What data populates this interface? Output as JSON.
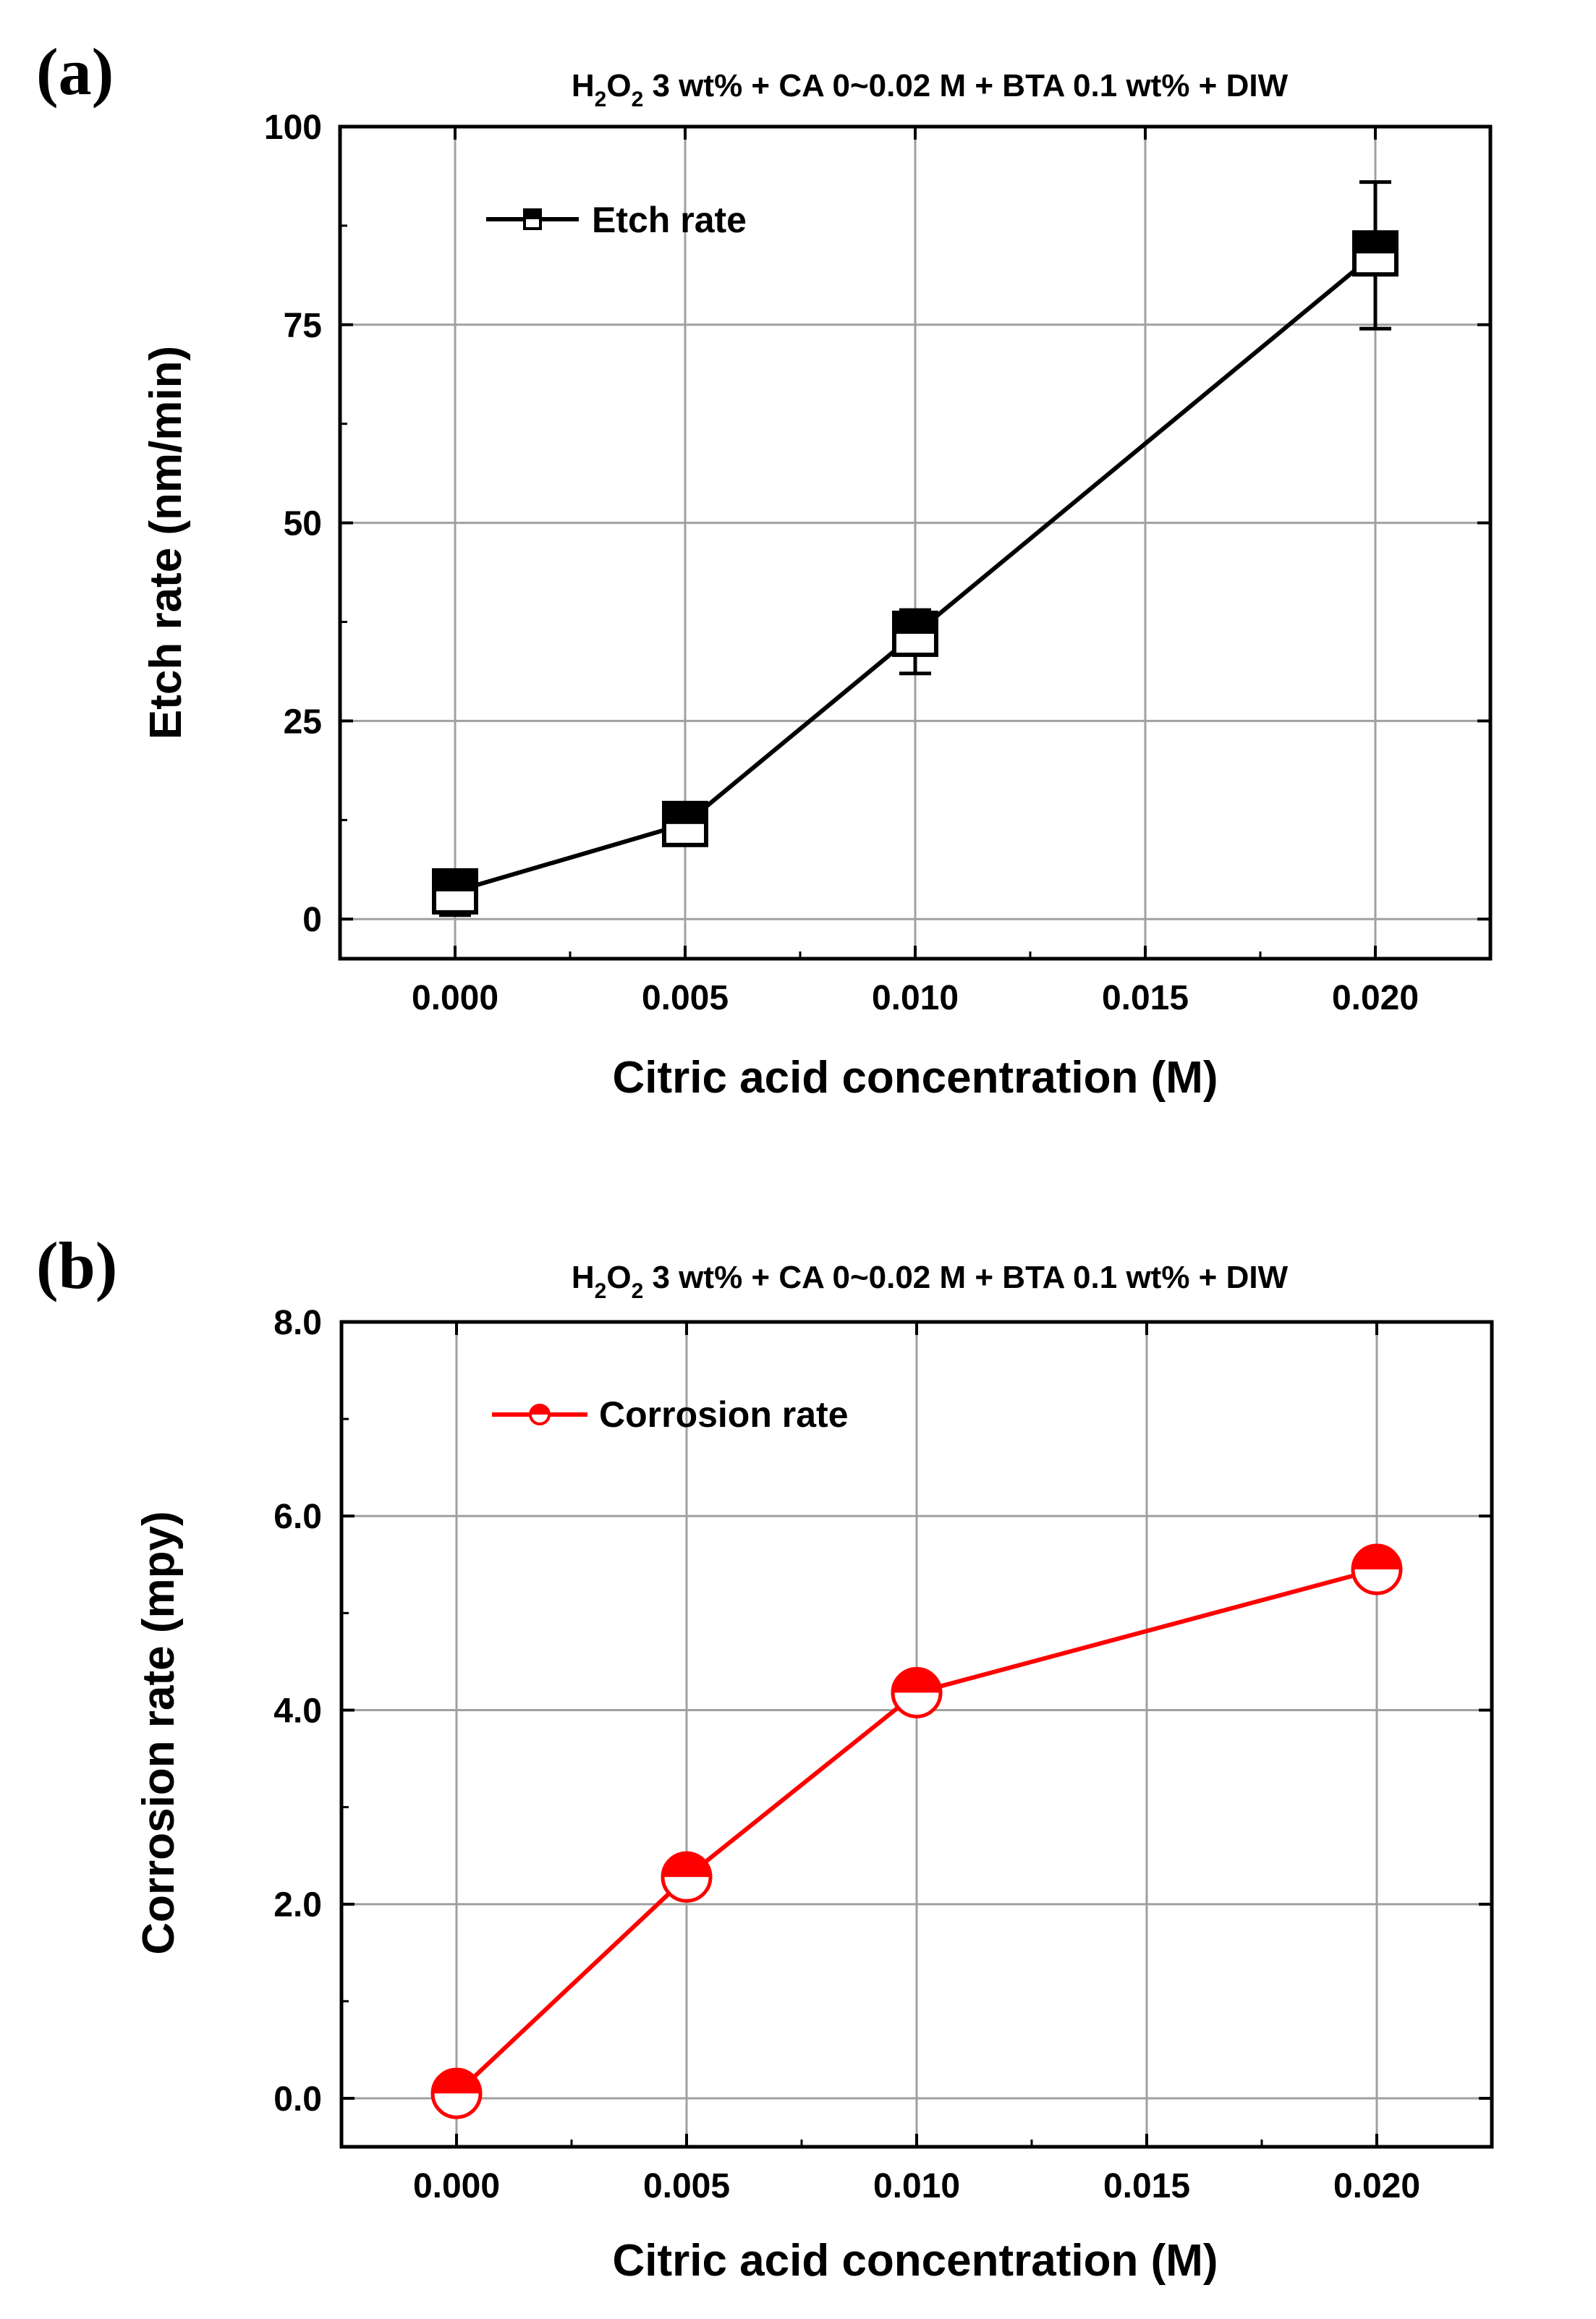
{
  "chart_data": [
    {
      "type": "line",
      "panel_label": "(a)",
      "title": {
        "main": "H",
        "sub1": "2",
        "mid": "O",
        "sub2": "2",
        "rest": " 3 wt% + CA 0~0.02 M + BTA 0.1 wt% + DIW"
      },
      "xlabel": "Citric acid concentration (M)",
      "ylabel": "Etch rate (nm/min)",
      "xlim": [
        -0.0025,
        0.0225
      ],
      "ylim": [
        -5,
        100
      ],
      "xticks": [
        "0.000",
        "0.005",
        "0.010",
        "0.015",
        "0.020"
      ],
      "xtick_values": [
        0,
        0.005,
        0.01,
        0.015,
        0.02
      ],
      "yticks": [
        "0",
        "25",
        "50",
        "75",
        "100"
      ],
      "ytick_values": [
        0,
        25,
        50,
        75,
        100
      ],
      "grid": true,
      "legend": {
        "label": "Etch rate",
        "position": "top-left"
      },
      "series": [
        {
          "name": "Etch rate",
          "color": "#000000",
          "marker": "half-filled-square",
          "x": [
            0,
            0.005,
            0.01,
            0.02
          ],
          "values": [
            3.5,
            12,
            36,
            84
          ],
          "err_low": [
            0.5,
            9.5,
            31,
            74.5
          ],
          "err_high": [
            5,
            13,
            39,
            93
          ]
        }
      ]
    },
    {
      "type": "line",
      "panel_label": "(b)",
      "title": {
        "main": "H",
        "sub1": "2",
        "mid": "O",
        "sub2": "2",
        "rest": " 3 wt% + CA 0~0.02 M + BTA 0.1 wt% + DIW"
      },
      "xlabel": "Citric acid concentration (M)",
      "ylabel": "Corrosion rate (mpy)",
      "xlim": [
        -0.0025,
        0.0225
      ],
      "ylim": [
        -0.5,
        8.0
      ],
      "xticks": [
        "0.000",
        "0.005",
        "0.010",
        "0.015",
        "0.020"
      ],
      "xtick_values": [
        0,
        0.005,
        0.01,
        0.015,
        0.02
      ],
      "yticks": [
        "0.0",
        "2.0",
        "4.0",
        "6.0",
        "8.0"
      ],
      "ytick_values": [
        0,
        2,
        4,
        6,
        8
      ],
      "grid": true,
      "legend": {
        "label": "Corrosion rate",
        "position": "top-left"
      },
      "series": [
        {
          "name": "Corrosion rate",
          "color": "#ff0000",
          "marker": "half-filled-circle",
          "x": [
            0,
            0.005,
            0.01,
            0.02
          ],
          "values": [
            0.05,
            2.28,
            4.18,
            5.45
          ]
        }
      ]
    }
  ]
}
